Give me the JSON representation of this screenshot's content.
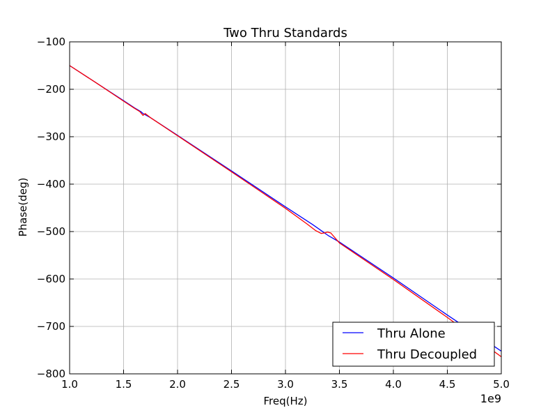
{
  "chart_data": {
    "type": "line",
    "title": "Two Thru Standards",
    "xlabel": "Freq(Hz)",
    "ylabel": "Phase(deg)",
    "x_offset_label": "1e9",
    "xlim": [
      1.0,
      5.0
    ],
    "ylim": [
      -800,
      -100
    ],
    "x_unit_scale": 1000000000,
    "xticks": [
      1.0,
      1.5,
      2.0,
      2.5,
      3.0,
      3.5,
      4.0,
      4.5,
      5.0
    ],
    "xtick_labels": [
      "1.0",
      "1.5",
      "2.0",
      "2.5",
      "3.0",
      "3.5",
      "4.0",
      "4.5",
      "5.0"
    ],
    "yticks": [
      -100,
      -200,
      -300,
      -400,
      -500,
      -600,
      -700,
      -800
    ],
    "ytick_labels": [
      "−100",
      "−200",
      "−300",
      "−400",
      "−500",
      "−600",
      "−700",
      "−800"
    ],
    "grid": true,
    "legend_position": "lower-right",
    "series": [
      {
        "name": "Thru Alone",
        "color": "#0000ff",
        "x": [
          1.0,
          1.25,
          1.5,
          1.6,
          1.66,
          1.68,
          1.75,
          2.0,
          2.5,
          3.0,
          3.25,
          3.35,
          3.4,
          3.5,
          4.0,
          4.5,
          5.0
        ],
        "y": [
          -150,
          -187,
          -224,
          -239,
          -247,
          -251,
          -260,
          -297,
          -372,
          -448,
          -485,
          -501,
          -509,
          -522,
          -598,
          -676,
          -752
        ]
      },
      {
        "name": "Thru Decoupled",
        "color": "#ff0000",
        "x": [
          1.0,
          1.25,
          1.5,
          1.6,
          1.65,
          1.68,
          1.7,
          1.75,
          2.0,
          2.5,
          3.0,
          3.2,
          3.28,
          3.33,
          3.36,
          3.39,
          3.42,
          3.5,
          4.0,
          4.5,
          5.0
        ],
        "y": [
          -150,
          -187,
          -225,
          -240,
          -247,
          -255,
          -251,
          -260,
          -298,
          -374,
          -451,
          -484,
          -498,
          -504,
          -503,
          -501,
          -503,
          -524,
          -601,
          -681,
          -764
        ]
      }
    ]
  }
}
